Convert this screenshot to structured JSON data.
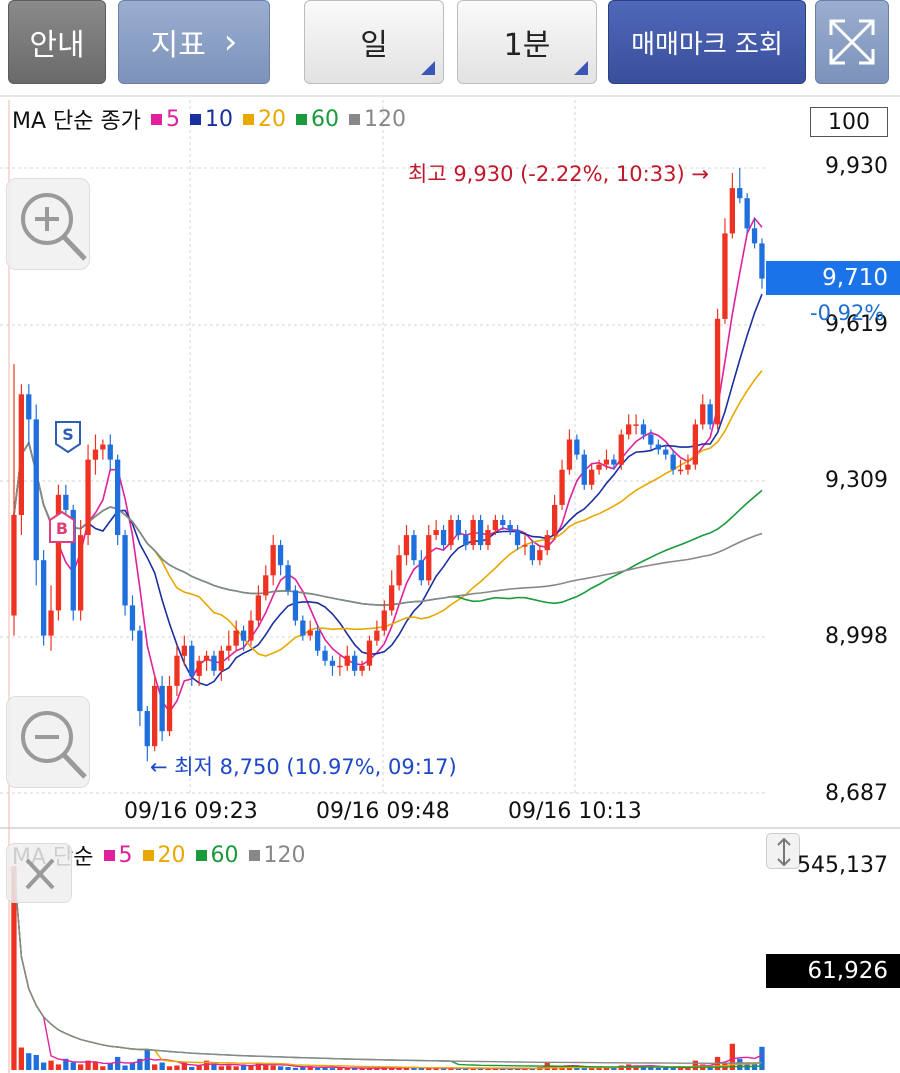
{
  "toolbar": {
    "guide_label": "안내",
    "indicator_label": "지표",
    "indicator_chevron": "›",
    "period_label": "일",
    "interval_label": "1분",
    "trade_mark_label": "매매마크 조회",
    "expand_icon": "expand-icon"
  },
  "price_legend": {
    "title": "MA 단순 종가",
    "items": [
      {
        "label": "5",
        "color": "#e0209c"
      },
      {
        "label": "10",
        "color": "#1a2fa0"
      },
      {
        "label": "20",
        "color": "#e8a800"
      },
      {
        "label": "60",
        "color": "#1a9a3a"
      },
      {
        "label": "120",
        "color": "#888888"
      }
    ]
  },
  "volume_legend": {
    "title": "MA 단순",
    "items": [
      {
        "label": "5",
        "color": "#e0209c"
      },
      {
        "label": "20",
        "color": "#e8a800"
      },
      {
        "label": "60",
        "color": "#1a9a3a"
      },
      {
        "label": "120",
        "color": "#888888"
      }
    ]
  },
  "period_box": "100",
  "price_axis": [
    "9,930",
    "9,619",
    "9,309",
    "8,998",
    "8,687"
  ],
  "current": {
    "price": "9,710",
    "change": "-0.92%"
  },
  "annotations": {
    "high": "최고 9,930 (-2.22%, 10:33) →",
    "low": "← 최저 8,750 (10.97%, 09:17)"
  },
  "x_labels": [
    "09/16 09:23",
    "09/16 09:48",
    "09/16 10:13"
  ],
  "volume_axis": {
    "max": "545,137",
    "current": "61,926"
  },
  "marks": {
    "buy": "B",
    "sell": "S"
  },
  "colors": {
    "up": "#ee3322",
    "down": "#1f6fdc",
    "grid": "#d6d6d6"
  },
  "chart_data": [
    {
      "type": "candlestick",
      "title": "",
      "ylabel": "",
      "ylim": [
        8687,
        9930
      ],
      "interval": "1분",
      "moving_averages": [
        5,
        10,
        20,
        60,
        120
      ],
      "close": [
        9240,
        9480,
        9430,
        9150,
        9000,
        9050,
        9280,
        9250,
        9050,
        9200,
        9350,
        9370,
        9380,
        9350,
        9200,
        9060,
        9010,
        8850,
        8780,
        8900,
        8810,
        8900,
        8960,
        8980,
        8920,
        8950,
        8960,
        8930,
        8970,
        8980,
        9010,
        8990,
        9030,
        9080,
        9120,
        9180,
        9140,
        9090,
        9030,
        9000,
        9010,
        8970,
        8950,
        8940,
        8940,
        8960,
        8930,
        8940,
        8990,
        9010,
        9050,
        9100,
        9160,
        9200,
        9150,
        9110,
        9200,
        9210,
        9180,
        9230,
        9200,
        9180,
        9230,
        9180,
        9210,
        9230,
        9220,
        9210,
        9180,
        9180,
        9150,
        9170,
        9200,
        9260,
        9330,
        9390,
        9360,
        9300,
        9330,
        9340,
        9350,
        9340,
        9400,
        9420,
        9420,
        9400,
        9380,
        9370,
        9360,
        9330,
        9330,
        9340,
        9420,
        9460,
        9420,
        9630,
        9800,
        9890,
        9870,
        9810,
        9780,
        9710
      ],
      "open": [
        9040,
        9240,
        9480,
        9430,
        9150,
        9000,
        9050,
        9280,
        9250,
        9050,
        9200,
        9350,
        9370,
        9380,
        9350,
        9200,
        9060,
        9010,
        8850,
        8780,
        8900,
        8810,
        8900,
        8960,
        8980,
        8920,
        8950,
        8960,
        8930,
        8970,
        8980,
        9010,
        8990,
        9030,
        9080,
        9120,
        9180,
        9140,
        9090,
        9030,
        9000,
        9010,
        8970,
        8950,
        8940,
        8940,
        8960,
        8930,
        8940,
        8990,
        9010,
        9050,
        9100,
        9160,
        9200,
        9150,
        9110,
        9200,
        9210,
        9180,
        9230,
        9200,
        9180,
        9230,
        9180,
        9210,
        9230,
        9220,
        9210,
        9180,
        9180,
        9150,
        9170,
        9200,
        9260,
        9330,
        9390,
        9360,
        9300,
        9330,
        9340,
        9350,
        9340,
        9400,
        9420,
        9420,
        9400,
        9380,
        9370,
        9360,
        9330,
        9330,
        9340,
        9420,
        9460,
        9420,
        9630,
        9800,
        9890,
        9870,
        9810,
        9780
      ],
      "high": [
        9540,
        9500,
        9500,
        9460,
        9170,
        9100,
        9300,
        9300,
        9260,
        9230,
        9380,
        9400,
        9390,
        9400,
        9360,
        9210,
        9080,
        9020,
        8860,
        8920,
        8920,
        8920,
        8980,
        9000,
        8990,
        8960,
        8970,
        8970,
        8980,
        9010,
        9030,
        9020,
        9050,
        9100,
        9140,
        9200,
        9190,
        9150,
        9100,
        9040,
        9030,
        9020,
        8980,
        8960,
        8960,
        8980,
        8970,
        8950,
        9000,
        9030,
        9070,
        9130,
        9180,
        9220,
        9210,
        9170,
        9220,
        9230,
        9220,
        9240,
        9240,
        9210,
        9240,
        9240,
        9220,
        9240,
        9240,
        9230,
        9220,
        9200,
        9190,
        9180,
        9210,
        9280,
        9350,
        9410,
        9400,
        9370,
        9340,
        9350,
        9370,
        9360,
        9410,
        9440,
        9440,
        9430,
        9410,
        9390,
        9380,
        9370,
        9350,
        9360,
        9430,
        9480,
        9470,
        9650,
        9830,
        9920,
        9930,
        9880,
        9830,
        9790
      ],
      "low": [
        9000,
        9200,
        9380,
        9100,
        8980,
        8970,
        9030,
        9220,
        9030,
        9030,
        9180,
        9320,
        9350,
        9330,
        9180,
        9040,
        8990,
        8820,
        8750,
        8770,
        8790,
        8800,
        8880,
        8940,
        8900,
        8900,
        8930,
        8920,
        8910,
        8950,
        8970,
        8970,
        8980,
        9020,
        9070,
        9100,
        9120,
        9080,
        9020,
        8990,
        8990,
        8960,
        8940,
        8920,
        8920,
        8930,
        8920,
        8920,
        8930,
        8980,
        9000,
        9040,
        9090,
        9140,
        9140,
        9100,
        9100,
        9190,
        9170,
        9170,
        9190,
        9170,
        9170,
        9170,
        9170,
        9200,
        9210,
        9200,
        9170,
        9160,
        9140,
        9140,
        9160,
        9190,
        9250,
        9320,
        9350,
        9290,
        9290,
        9320,
        9330,
        9330,
        9330,
        9390,
        9400,
        9390,
        9370,
        9360,
        9350,
        9320,
        9320,
        9320,
        9330,
        9410,
        9410,
        9410,
        9620,
        9790,
        9860,
        9800,
        9770,
        9690
      ]
    },
    {
      "type": "bar",
      "title": "",
      "ylabel": "",
      "ylim": [
        0,
        545137
      ],
      "values": [
        545137,
        60000,
        45000,
        40000,
        20000,
        25000,
        15000,
        30000,
        20000,
        15000,
        25000,
        20000,
        10000,
        18000,
        35000,
        12000,
        20000,
        30000,
        55000,
        15000,
        20000,
        10000,
        12000,
        20000,
        8000,
        12000,
        25000,
        15000,
        10000,
        12000,
        10000,
        15000,
        12000,
        20000,
        15000,
        12000,
        10000,
        8000,
        6000,
        8000,
        10000,
        6000,
        8000,
        5000,
        6000,
        4000,
        5000,
        6000,
        4000,
        5000,
        8000,
        6000,
        5000,
        8000,
        6000,
        5000,
        4000,
        5000,
        4000,
        6000,
        5000,
        5000,
        4000,
        5000,
        4000,
        3000,
        4000,
        5000,
        4000,
        3000,
        5000,
        8000,
        20000,
        10000,
        8000,
        12000,
        8000,
        6000,
        5000,
        6000,
        8000,
        6000,
        12000,
        15000,
        12000,
        10000,
        8000,
        6000,
        8000,
        6000,
        5000,
        6000,
        25000,
        15000,
        10000,
        35000,
        20000,
        70000,
        30000,
        15000,
        20000,
        61926
      ]
    }
  ]
}
